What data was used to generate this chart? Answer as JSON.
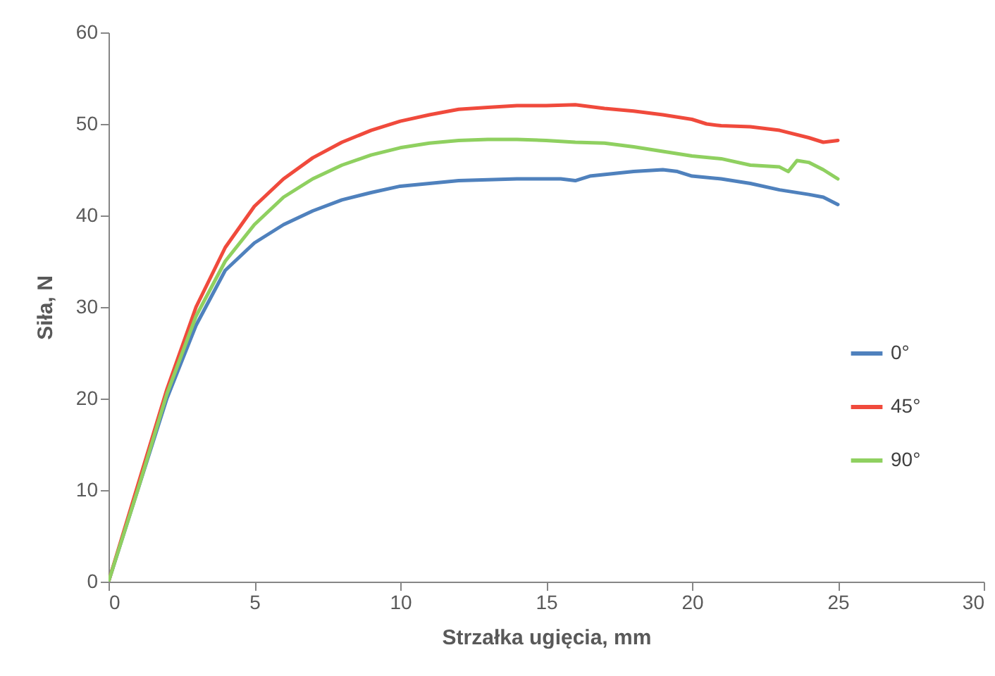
{
  "chart_data": {
    "type": "line",
    "xlabel": "Strzałka ugięcia, mm",
    "ylabel": "Siła, N",
    "xlim": [
      0,
      30
    ],
    "xticks": [
      0,
      5,
      10,
      15,
      20,
      25,
      30
    ],
    "ylim": [
      0,
      60
    ],
    "yticks": [
      0,
      10,
      20,
      30,
      40,
      50,
      60
    ],
    "grid": false,
    "legend": "right",
    "marker": "none",
    "line_style": "solid",
    "series": [
      {
        "name": "0°",
        "color": "#4f81bd",
        "x": [
          0,
          1,
          2,
          3,
          4,
          5,
          6,
          7,
          8,
          9,
          10,
          12,
          14,
          15.5,
          16,
          16.5,
          18,
          19,
          19.5,
          20,
          21,
          22,
          23,
          24,
          24.5,
          25
        ],
        "values": [
          0,
          10,
          20,
          28,
          34,
          37,
          39,
          40.5,
          41.7,
          42.5,
          43.2,
          43.8,
          44,
          44,
          43.8,
          44.3,
          44.8,
          45,
          44.8,
          44.3,
          44,
          43.5,
          42.8,
          42.3,
          42,
          41.2
        ]
      },
      {
        "name": "45°",
        "color": "#f04a3c",
        "x": [
          0,
          1,
          2,
          3,
          4,
          5,
          6,
          7,
          8,
          9,
          10,
          11,
          12,
          13,
          14,
          15,
          16,
          17,
          18,
          19,
          20,
          20.5,
          21,
          22,
          23,
          24,
          24.5,
          25
        ],
        "values": [
          0,
          10.5,
          21,
          30,
          36.5,
          41,
          44,
          46.3,
          48,
          49.3,
          50.3,
          51,
          51.6,
          51.8,
          52,
          52,
          52.1,
          51.7,
          51.4,
          51,
          50.5,
          50,
          49.8,
          49.7,
          49.3,
          48.5,
          48,
          48.2
        ]
      },
      {
        "name": "90°",
        "color": "#8fd060",
        "x": [
          0,
          1,
          2,
          3,
          4,
          5,
          6,
          7,
          8,
          9,
          10,
          11,
          12,
          13,
          14,
          15,
          16,
          17,
          18,
          19,
          20,
          21,
          22,
          23,
          23.3,
          23.6,
          24,
          24.5,
          25
        ],
        "values": [
          0,
          10,
          20.5,
          29,
          35,
          39,
          42,
          44,
          45.5,
          46.6,
          47.4,
          47.9,
          48.2,
          48.3,
          48.3,
          48.2,
          48,
          47.9,
          47.5,
          47,
          46.5,
          46.2,
          45.5,
          45.3,
          44.8,
          46,
          45.8,
          45,
          44
        ]
      }
    ]
  }
}
